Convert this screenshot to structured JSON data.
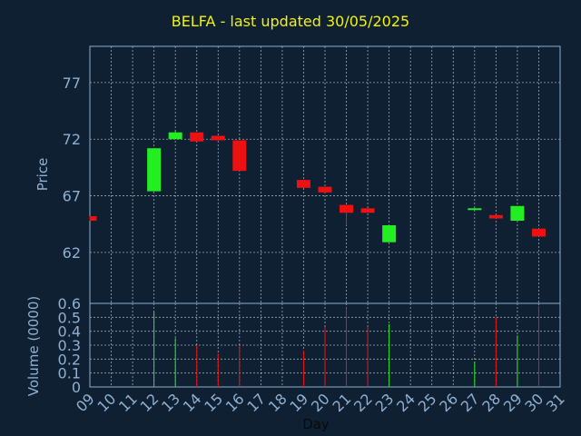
{
  "title": "BELFA - last updated 30/05/2025",
  "colors": {
    "background": "#0f2033",
    "frame": "#8fb0d0",
    "grid": "#ffffff",
    "text": "#8fb0d0",
    "title": "#f2f20a",
    "up": "#22ee22",
    "down": "#ee1111"
  },
  "chart_data": {
    "type": "candlestick",
    "xlabel": "Day",
    "price_ylabel": "Price",
    "volume_ylabel": "Volume (0000)",
    "x_ticks": [
      "09",
      "10",
      "11",
      "12",
      "13",
      "14",
      "15",
      "16",
      "17",
      "18",
      "19",
      "20",
      "21",
      "22",
      "23",
      "24",
      "25",
      "26",
      "27",
      "28",
      "29",
      "30",
      "31"
    ],
    "price_ticks": [
      62,
      67,
      72,
      77
    ],
    "price_ylim": [
      57.5,
      80.2
    ],
    "volume_ticks": [
      0,
      0.1,
      0.2,
      0.3,
      0.4,
      0.5,
      0.6
    ],
    "volume_ylim": [
      0,
      0.6
    ],
    "grid": true,
    "candles": [
      {
        "day": "09",
        "open": 65.2,
        "high": 65.2,
        "low": 64.8,
        "close": 64.8,
        "volume": 0
      },
      {
        "day": "12",
        "open": 67.4,
        "high": 71.2,
        "low": 67.4,
        "close": 71.2,
        "volume": 0.54
      },
      {
        "day": "13",
        "open": 72.0,
        "high": 72.8,
        "low": 72.0,
        "close": 72.6,
        "volume": 0.35
      },
      {
        "day": "14",
        "open": 72.6,
        "high": 72.6,
        "low": 71.8,
        "close": 71.8,
        "volume": 0.3
      },
      {
        "day": "15",
        "open": 72.3,
        "high": 72.3,
        "low": 71.9,
        "close": 71.9,
        "volume": 0.24
      },
      {
        "day": "16",
        "open": 71.9,
        "high": 71.9,
        "low": 69.2,
        "close": 69.2,
        "volume": 0.3
      },
      {
        "day": "19",
        "open": 68.4,
        "high": 68.4,
        "low": 67.7,
        "close": 67.7,
        "volume": 0.26
      },
      {
        "day": "20",
        "open": 67.8,
        "high": 67.8,
        "low": 67.3,
        "close": 67.3,
        "volume": 0.43
      },
      {
        "day": "21",
        "open": 66.2,
        "high": 66.2,
        "low": 64.4,
        "close": 65.5,
        "volume": 0.57
      },
      {
        "day": "22",
        "open": 65.9,
        "high": 65.9,
        "low": 65.5,
        "close": 65.5,
        "volume": 0.43
      },
      {
        "day": "23",
        "open": 62.9,
        "high": 64.4,
        "low": 62.9,
        "close": 64.4,
        "volume": 0.45
      },
      {
        "day": "27",
        "open": 65.8,
        "high": 65.9,
        "low": 65.8,
        "close": 65.9,
        "volume": 0.18
      },
      {
        "day": "28",
        "open": 65.3,
        "high": 65.3,
        "low": 65.0,
        "close": 65.0,
        "volume": 0.5
      },
      {
        "day": "29",
        "open": 64.8,
        "high": 66.1,
        "low": 64.8,
        "close": 66.1,
        "volume": 0.37
      },
      {
        "day": "30",
        "open": 64.1,
        "high": 64.1,
        "low": 63.4,
        "close": 63.4,
        "volume": 0.58
      }
    ]
  }
}
